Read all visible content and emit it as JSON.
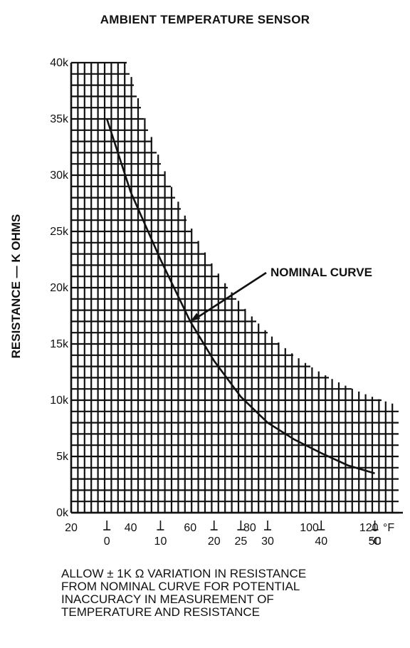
{
  "chart_data": {
    "type": "line",
    "title": "AMBIENT TEMPERATURE SENSOR",
    "ylabel": "RESISTANCE — K OHMS",
    "xlabel": "",
    "ylim": [
      0,
      40
    ],
    "yticks": [
      {
        "value": 0,
        "label": "0k"
      },
      {
        "value": 5,
        "label": "5k"
      },
      {
        "value": 10,
        "label": "10k"
      },
      {
        "value": 15,
        "label": "15k"
      },
      {
        "value": 20,
        "label": "20k"
      },
      {
        "value": 25,
        "label": "25k"
      },
      {
        "value": 30,
        "label": "30k"
      },
      {
        "value": 35,
        "label": "35k"
      },
      {
        "value": 40,
        "label": "40k"
      }
    ],
    "xlim_f": [
      20,
      130
    ],
    "x_f_ticks": [
      {
        "value": 20,
        "label": "20"
      },
      {
        "value": 40,
        "label": "40"
      },
      {
        "value": 60,
        "label": "60"
      },
      {
        "value": 80,
        "label": "80"
      },
      {
        "value": 100,
        "label": "100"
      },
      {
        "value": 120,
        "label": "120"
      }
    ],
    "x_f_unit": "°F",
    "x_c_ticks": [
      {
        "value": 0,
        "label": "0"
      },
      {
        "value": 10,
        "label": "10"
      },
      {
        "value": 20,
        "label": "20"
      },
      {
        "value": 25,
        "label": "25"
      },
      {
        "value": 30,
        "label": "30"
      },
      {
        "value": 40,
        "label": "40"
      },
      {
        "value": 50,
        "label": "50"
      }
    ],
    "x_c_unit": "°C",
    "grid": true,
    "series": [
      {
        "name": "NOMINAL CURVE",
        "x_f": [
          32,
          40,
          50,
          60,
          68,
          77,
          86,
          95,
          104,
          113,
          122
        ],
        "y": [
          35.0,
          28.5,
          22.5,
          17.0,
          13.5,
          10.3,
          8.0,
          6.5,
          5.3,
          4.2,
          3.5
        ]
      }
    ],
    "annotation": {
      "text": "NOMINAL CURVE",
      "points_to_x_f": 60,
      "points_to_y": 17.0
    },
    "note": [
      "ALLOW ± 1K Ω VARIATION IN RESISTANCE",
      "FROM NOMINAL CURVE FOR POTENTIAL",
      "INACCURACY IN MEASUREMENT OF",
      "TEMPERATURE AND RESISTANCE"
    ],
    "colors": {
      "ink": "#111111",
      "background": "#ffffff"
    }
  }
}
